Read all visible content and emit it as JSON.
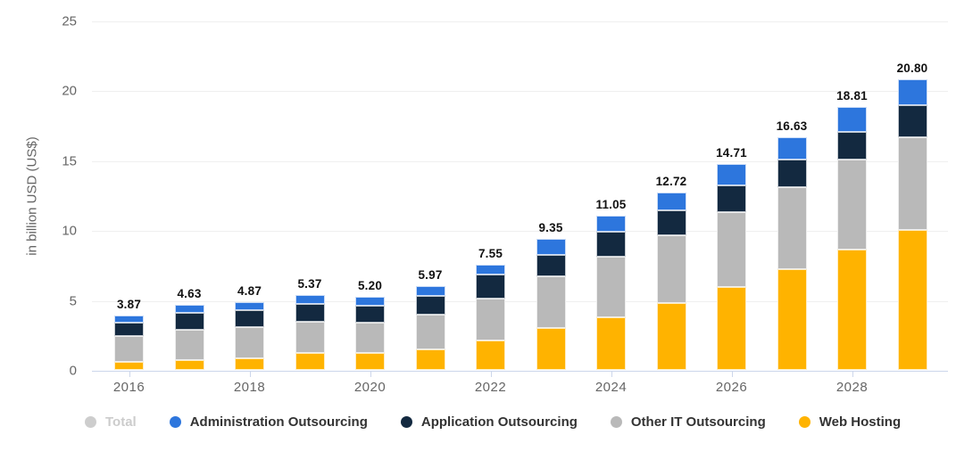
{
  "page": {
    "background": "#ffffff"
  },
  "chart_data": {
    "type": "bar",
    "stacked": true,
    "title": "",
    "ylabel": "in billion USD (US$)",
    "ylim": [
      0,
      25
    ],
    "yticks": [
      0,
      5,
      10,
      15,
      20,
      25
    ],
    "grid": true,
    "legend_position": "bottom",
    "categories": [
      "2016",
      "2017",
      "2018",
      "2019",
      "2020",
      "2021",
      "2022",
      "2023",
      "2024",
      "2025",
      "2026",
      "2027",
      "2028",
      "2029"
    ],
    "xtick_labels": [
      "2016",
      "2018",
      "2020",
      "2022",
      "2024",
      "2026",
      "2028"
    ],
    "series": [
      {
        "name": "Web Hosting",
        "color": "#ffb300",
        "values": [
          0.56,
          0.72,
          0.82,
          1.19,
          1.19,
          1.45,
          2.08,
          3.0,
          3.78,
          4.78,
          5.95,
          7.2,
          8.6,
          10.0
        ]
      },
      {
        "name": "Other IT Outsourcing",
        "color": "#b9b9b9",
        "values": [
          1.86,
          2.18,
          2.22,
          2.27,
          2.2,
          2.48,
          3.03,
          3.71,
          4.31,
          4.87,
          5.36,
          5.85,
          6.45,
          6.68
        ]
      },
      {
        "name": "Application Outsourcing",
        "color": "#132940",
        "values": [
          0.97,
          1.16,
          1.22,
          1.27,
          1.19,
          1.36,
          1.72,
          1.53,
          1.78,
          1.76,
          1.87,
          2.03,
          1.96,
          2.25
        ]
      },
      {
        "name": "Administration Outsourcing",
        "color": "#2d76dd",
        "values": [
          0.48,
          0.57,
          0.61,
          0.64,
          0.62,
          0.68,
          0.72,
          1.11,
          1.18,
          1.31,
          1.53,
          1.55,
          1.8,
          1.87
        ]
      }
    ],
    "totals": [
      3.87,
      4.63,
      4.87,
      5.37,
      5.2,
      5.97,
      7.55,
      9.35,
      11.05,
      12.72,
      14.71,
      16.63,
      18.81,
      20.8
    ],
    "legend": [
      {
        "label": "Total",
        "color": "#cdcdcd",
        "disabled": true
      },
      {
        "label": "Administration Outsourcing",
        "color": "#2d76dd",
        "disabled": false
      },
      {
        "label": "Application Outsourcing",
        "color": "#132940",
        "disabled": false
      },
      {
        "label": "Other IT Outsourcing",
        "color": "#b9b9b9",
        "disabled": false
      },
      {
        "label": "Web Hosting",
        "color": "#ffb300",
        "disabled": false
      }
    ],
    "colors": {
      "gridline": "#efefef",
      "axis_line": "#ccd6eb",
      "axis_text": "#666666",
      "value_label": "#111111",
      "legend_text": "#333333",
      "legend_text_disabled": "#cccccc"
    }
  }
}
